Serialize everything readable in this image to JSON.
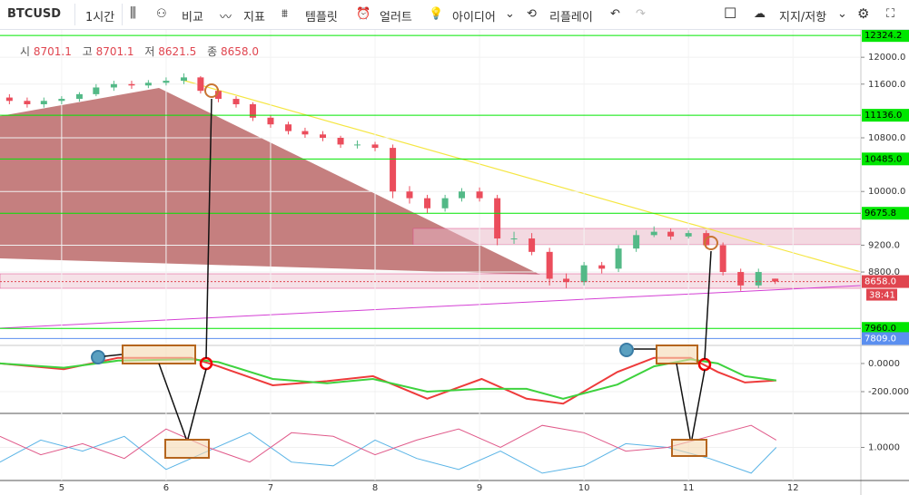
{
  "toolbar": {
    "symbol": "BTCUSD",
    "interval": "1시간",
    "compare": "비교",
    "indicators": "지표",
    "templates": "템플릿",
    "alerts": "얼러트",
    "ideas": "아이디어",
    "replay": "리플레이",
    "study": "지지/저항"
  },
  "chart_data": [
    {
      "type": "candlestick",
      "legend": {
        "open_label": "시",
        "open": 8701.1,
        "high_label": "고",
        "high": 8701.1,
        "low_label": "저",
        "low": 8621.5,
        "close_label": "종",
        "close": {
          "value": 8658,
          "label": "8658.0"
        }
      },
      "x": [
        4.5,
        4.67,
        4.83,
        5,
        5.17,
        5.33,
        5.5,
        5.67,
        5.83,
        6,
        6.17,
        6.33,
        6.5,
        6.67,
        6.83,
        7,
        7.17,
        7.33,
        7.5,
        7.67,
        7.83,
        8,
        8.17,
        8.33,
        8.5,
        8.67,
        8.83,
        9,
        9.17,
        9.33,
        9.5,
        9.67,
        9.83,
        10,
        10.17,
        10.33,
        10.5,
        10.67,
        10.83,
        11,
        11.17,
        11.33,
        11.5,
        11.67,
        11.83
      ],
      "open": [
        11400,
        11350,
        11300,
        11350,
        11380,
        11450,
        11550,
        11600,
        11580,
        11620,
        11650,
        11700,
        11500,
        11380,
        11300,
        11100,
        11000,
        10900,
        10850,
        10800,
        10700,
        10700,
        10650,
        10000,
        9900,
        9750,
        9900,
        10000,
        9900,
        9300,
        9300,
        9100,
        8700,
        8650,
        8900,
        8850,
        9150,
        9350,
        9400,
        9330,
        9380,
        9200,
        8800,
        8600,
        8701.1
      ],
      "high": [
        11450,
        11400,
        11400,
        11420,
        11480,
        11600,
        11650,
        11650,
        11660,
        11700,
        11760,
        11720,
        11530,
        11420,
        11330,
        11140,
        11040,
        10950,
        10900,
        10830,
        10760,
        10740,
        10700,
        10080,
        9950,
        9950,
        10050,
        10060,
        9950,
        9400,
        9380,
        9160,
        8780,
        8950,
        8950,
        9200,
        9420,
        9480,
        9450,
        9420,
        9420,
        9240,
        8850,
        8850,
        8701.1
      ],
      "low": [
        11300,
        11250,
        11250,
        11300,
        11340,
        11420,
        11500,
        11530,
        11540,
        11580,
        11600,
        11460,
        11330,
        11250,
        11050,
        10950,
        10850,
        10800,
        10750,
        10650,
        10640,
        10600,
        9900,
        9820,
        9680,
        9700,
        9850,
        9850,
        9200,
        9220,
        9050,
        8600,
        8560,
        8600,
        8780,
        8800,
        9100,
        9320,
        9280,
        9300,
        9150,
        8750,
        8520,
        8560,
        8621.5
      ],
      "close": [
        11350,
        11300,
        11350,
        11380,
        11450,
        11550,
        11600,
        11580,
        11620,
        11650,
        11700,
        11500,
        11380,
        11300,
        11100,
        11000,
        10900,
        10850,
        10800,
        10700,
        10700,
        10650,
        10000,
        9900,
        9750,
        9900,
        10000,
        9900,
        9300,
        9300,
        9100,
        8700,
        8650,
        8900,
        8850,
        9150,
        9350,
        9400,
        9330,
        9380,
        9200,
        8800,
        8600,
        8800,
        8658
      ],
      "up_color": "#53b987",
      "down_color": "#eb4d5c",
      "xlim": [
        4.41,
        12.65
      ],
      "xticks": [
        5,
        6,
        7,
        8,
        9,
        10,
        11,
        12
      ],
      "ylim": [
        7720,
        12340
      ],
      "yticks": [
        {
          "value": 8800,
          "label": "8800.0"
        },
        {
          "value": 9200,
          "label": "9200.0"
        },
        {
          "value": 10000,
          "label": "10000.0"
        },
        {
          "value": 10800,
          "label": "10800.0"
        },
        {
          "value": 11600,
          "label": "11600.0"
        },
        {
          "value": 12000,
          "label": "12000.0"
        }
      ],
      "price_lines": [
        {
          "value": 12324.2,
          "color": "#00e600"
        },
        {
          "value": 11136,
          "label": "11136.0",
          "color": "#00e600"
        },
        {
          "value": 10485,
          "label": "10485.0",
          "color": "#00e600"
        },
        {
          "value": 9675.8,
          "color": "#00e600"
        },
        {
          "value": 7960,
          "label": "7960.0",
          "color": "#00e600"
        },
        {
          "value": 7809,
          "label": "7809.0",
          "color": "#5b8ff0"
        },
        {
          "value": 8658,
          "label": "8658.0",
          "color": "#e0454f"
        }
      ],
      "countdown": "38:41"
    },
    {
      "type": "line",
      "x": [
        4.41,
        5.02,
        5.54,
        6.24,
        6.5,
        7.02,
        7.54,
        7.98,
        8.5,
        9.02,
        9.45,
        9.8,
        10.32,
        10.67,
        11.02,
        11.28,
        11.54,
        11.84
      ],
      "series": [
        {
          "color": "#ee3b3b",
          "values": [
            0,
            -40,
            40,
            40,
            -20,
            -155,
            -125,
            -90,
            -250,
            -110,
            -250,
            -285,
            -60,
            40,
            40,
            -60,
            -135,
            -120
          ]
        },
        {
          "color": "#3ed23e",
          "values": [
            0,
            -30,
            20,
            30,
            10,
            -110,
            -140,
            -110,
            -200,
            -180,
            -180,
            -250,
            -150,
            -20,
            30,
            0,
            -90,
            -120
          ]
        }
      ],
      "xlim": [
        4.41,
        12.65
      ],
      "ylim": [
        -348,
        122
      ],
      "yticks": [
        {
          "value": 0,
          "label": "0.0000"
        },
        {
          "value": -200,
          "label": "-200.0000"
        }
      ]
    },
    {
      "type": "line",
      "x": [
        4.41,
        4.8,
        5.2,
        5.6,
        6,
        6.4,
        6.8,
        7.2,
        7.6,
        8,
        8.4,
        8.8,
        9.2,
        9.6,
        10,
        10.4,
        10.8,
        11.2,
        11.6,
        11.84
      ],
      "series": [
        {
          "color": "#5ab4e6",
          "values": [
            0.6,
            1.2,
            0.9,
            1.3,
            0.4,
            0.9,
            1.4,
            0.6,
            0.5,
            1.2,
            0.7,
            0.4,
            0.9,
            0.3,
            0.5,
            1.1,
            1.0,
            0.7,
            0.3,
            1.0
          ]
        },
        {
          "color": "#e05a8a",
          "values": [
            1.3,
            0.8,
            1.1,
            0.7,
            1.5,
            1.0,
            0.6,
            1.4,
            1.3,
            0.8,
            1.2,
            1.5,
            1.0,
            1.6,
            1.4,
            0.9,
            1.0,
            1.3,
            1.6,
            1.2
          ]
        }
      ],
      "xlim": [
        4.41,
        12.65
      ],
      "ylim": [
        0.1,
        1.9
      ],
      "yticks": [
        {
          "value": 1,
          "label": "1.0000"
        }
      ]
    }
  ]
}
